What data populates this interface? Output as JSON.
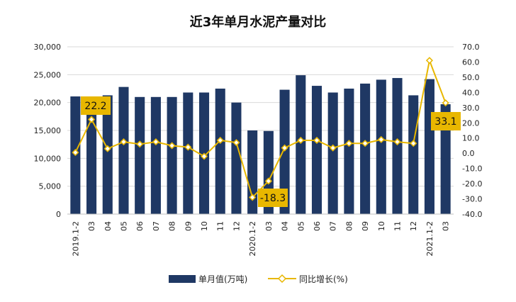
{
  "chart_data": {
    "type": "bar",
    "title": "近3年单月水泥产量对比",
    "categories": [
      "2019.1-2",
      "03",
      "04",
      "05",
      "06",
      "07",
      "08",
      "09",
      "10",
      "11",
      "12",
      "2020.1-2",
      "03",
      "04",
      "05",
      "06",
      "07",
      "08",
      "09",
      "10",
      "11",
      "12",
      "2021.1-2",
      "03"
    ],
    "series": [
      {
        "name": "单月值(万吨)",
        "type": "bar",
        "axis": "left",
        "color": "#1f3864",
        "values": [
          21100,
          18000,
          21300,
          22800,
          21000,
          21000,
          21000,
          21800,
          21800,
          22500,
          20000,
          15000,
          14900,
          22300,
          24900,
          23000,
          21800,
          22500,
          23400,
          24100,
          24400,
          21300,
          24200,
          19700
        ]
      },
      {
        "name": "同比增长(%)",
        "type": "line",
        "axis": "right",
        "color": "#e8b700",
        "values": [
          0.5,
          22.2,
          3.0,
          7.5,
          6.0,
          7.5,
          5.0,
          4.0,
          -2.0,
          8.5,
          7.0,
          -29.0,
          -18.3,
          3.5,
          8.5,
          8.5,
          3.5,
          6.5,
          6.5,
          9.0,
          7.5,
          6.5,
          61.0,
          33.1
        ]
      }
    ],
    "y_left": {
      "ticks": [
        "0",
        "5,000",
        "10,000",
        "15,000",
        "20,000",
        "25,000",
        "30,000"
      ],
      "ylim": [
        0,
        30000
      ]
    },
    "y_right": {
      "ticks": [
        "-40.0",
        "-30.0",
        "-20.0",
        "-10.0",
        "0.0",
        "10.0",
        "20.0",
        "30.0",
        "40.0",
        "50.0",
        "60.0",
        "70.0"
      ],
      "ylim": [
        -40,
        70
      ]
    },
    "callouts": [
      {
        "index": 1,
        "text": "22.2"
      },
      {
        "index": 12,
        "text": "-18.3"
      },
      {
        "index": 23,
        "text": "33.1"
      }
    ],
    "legend_position": "bottom",
    "grid": true
  }
}
